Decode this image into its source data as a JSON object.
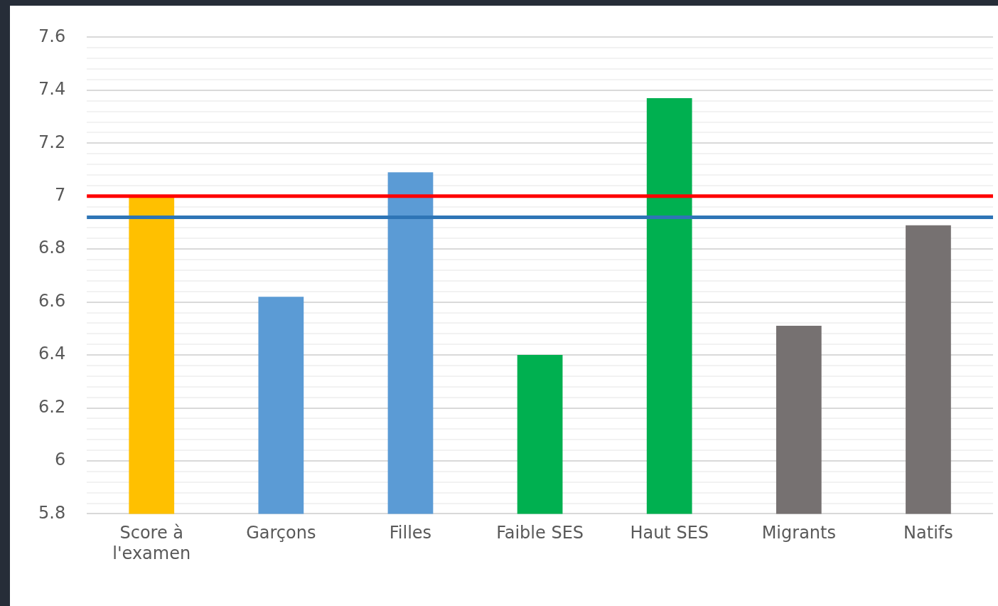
{
  "chart_data": {
    "type": "bar",
    "categories": [
      "Score à l'examen",
      "Garçons",
      "Filles",
      "Faible SES",
      "Haut SES",
      "Migrants",
      "Natifs"
    ],
    "values": [
      7.0,
      6.62,
      7.09,
      6.4,
      7.37,
      6.51,
      6.89
    ],
    "colors": [
      "#ffc000",
      "#5b9bd5",
      "#5b9bd5",
      "#00b050",
      "#00b050",
      "#767171",
      "#767171"
    ],
    "ylim": [
      5.8,
      7.6
    ],
    "yticks": [
      5.8,
      {
        "value": 5.84,
        "label": null
      },
      {
        "value": 5.88,
        "label": null
      },
      {
        "value": 5.92,
        "label": null
      },
      {
        "value": 5.96,
        "label": null
      },
      6,
      {
        "value": 6.04,
        "label": null
      },
      {
        "value": 6.08,
        "label": null
      },
      {
        "value": 6.12,
        "label": null
      },
      {
        "value": 6.16,
        "label": null
      },
      6.2,
      {
        "value": 6.24,
        "label": null
      },
      {
        "value": 6.28,
        "label": null
      },
      {
        "value": 6.32,
        "label": null
      },
      {
        "value": 6.36,
        "label": null
      },
      6.4,
      {
        "value": 6.44,
        "label": null
      },
      {
        "value": 6.48,
        "label": null
      },
      {
        "value": 6.52,
        "label": null
      },
      {
        "value": 6.56,
        "label": null
      },
      6.6,
      {
        "value": 6.64,
        "label": null
      },
      {
        "value": 6.68,
        "label": null
      },
      {
        "value": 6.72,
        "label": null
      },
      {
        "value": 6.76,
        "label": null
      },
      6.8,
      {
        "value": 6.84,
        "label": null
      },
      {
        "value": 6.88,
        "label": null
      },
      {
        "value": 6.92,
        "label": null
      },
      {
        "value": 6.96,
        "label": null
      },
      7,
      {
        "value": 7.04,
        "label": null
      },
      {
        "value": 7.08,
        "label": null
      },
      {
        "value": 7.12,
        "label": null
      },
      {
        "value": 7.16,
        "label": null
      },
      7.2,
      {
        "value": 7.24,
        "label": null
      },
      {
        "value": 7.28,
        "label": null
      },
      {
        "value": 7.32,
        "label": null
      },
      {
        "value": 7.36,
        "label": null
      },
      7.4,
      {
        "value": 7.44,
        "label": null
      },
      {
        "value": 7.48,
        "label": null
      },
      {
        "value": 7.52,
        "label": null
      },
      {
        "value": 7.56,
        "label": null
      },
      7.6
    ],
    "grid": "y",
    "legend": false,
    "ref_lines": [
      {
        "axis": "y",
        "value": 7.0,
        "color": "#ff0000"
      },
      {
        "axis": "y",
        "value": 6.92,
        "color": "#2e75b6"
      }
    ]
  }
}
